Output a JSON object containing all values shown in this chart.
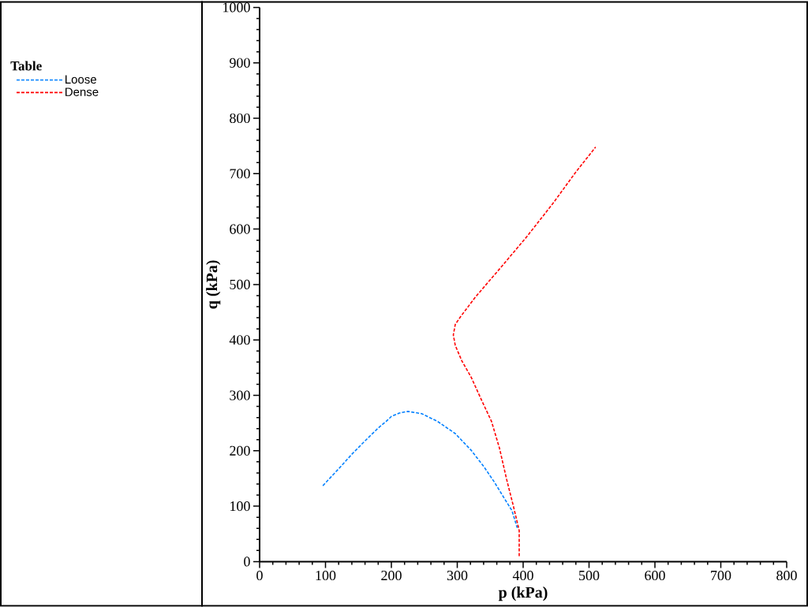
{
  "chart_data": {
    "type": "line",
    "xlabel": "p (kPa)",
    "ylabel": "q (kPa)",
    "legend_title": "Table",
    "legend": "left",
    "line_style": "dashed",
    "xlim": [
      0,
      800
    ],
    "ylim": [
      0,
      1000
    ],
    "xticks": [
      0,
      100,
      200,
      300,
      400,
      500,
      600,
      700,
      800
    ],
    "yticks": [
      0,
      100,
      200,
      300,
      400,
      500,
      600,
      700,
      800,
      900,
      1000
    ],
    "series": [
      {
        "name": "Loose",
        "color": "#0080ff",
        "x": [
          96,
          122,
          141,
          161,
          180,
          192,
          200,
          212,
          225,
          246,
          270,
          297,
          321,
          340,
          356,
          371,
          383,
          391
        ],
        "values": [
          137,
          170,
          195,
          219,
          241,
          253,
          262,
          268,
          271,
          267,
          253,
          231,
          201,
          172,
          144,
          115,
          92,
          61
        ]
      },
      {
        "name": "Dense",
        "color": "#ff0000",
        "x": [
          394,
          394,
          385,
          375,
          364,
          352,
          337,
          321,
          307,
          297,
          294,
          297,
          305,
          328,
          367,
          406,
          445,
          480,
          510
        ],
        "values": [
          10,
          56,
          101,
          148,
          205,
          253,
          291,
          333,
          362,
          390,
          409,
          428,
          442,
          478,
          532,
          587,
          646,
          703,
          748
        ]
      }
    ]
  }
}
